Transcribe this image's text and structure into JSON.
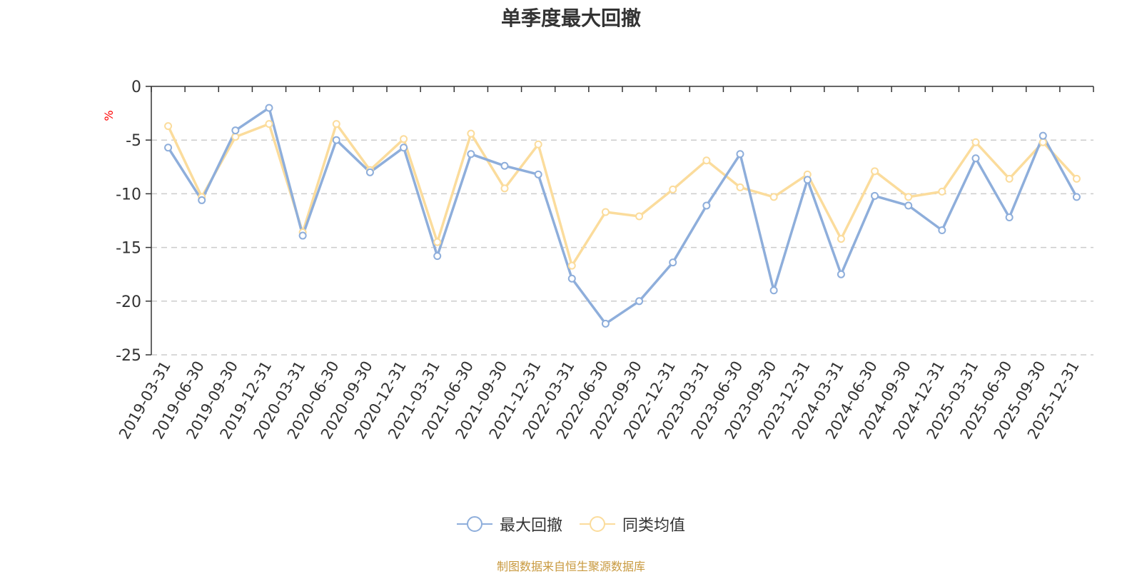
{
  "chart_data": {
    "type": "line",
    "title": "单季度最大回撤",
    "ylabel": "%",
    "xlabel": "",
    "ylim": [
      -25,
      0
    ],
    "yticks": [
      0,
      -5,
      -10,
      -15,
      -20,
      -25
    ],
    "ytick_labels": [
      "0",
      "-5",
      "-10",
      "-15",
      "-20",
      "-25"
    ],
    "grid": true,
    "legend_position": "bottom-center",
    "categories": [
      "2019-03-31",
      "2019-06-30",
      "2019-09-30",
      "2019-12-31",
      "2020-03-31",
      "2020-06-30",
      "2020-09-30",
      "2020-12-31",
      "2021-03-31",
      "2021-06-30",
      "2021-09-30",
      "2021-12-31",
      "2022-03-31",
      "2022-06-30",
      "2022-09-30",
      "2022-12-31",
      "2023-03-31",
      "2023-06-30",
      "2023-09-30",
      "2023-12-31",
      "2024-03-31",
      "2024-06-30",
      "2024-09-30",
      "2024-12-31",
      "2025-03-31",
      "2025-06-30",
      "2025-09-30",
      "2025-12-31"
    ],
    "series": [
      {
        "name": "最大回撤",
        "color": "#8eaedb",
        "values": [
          -5.7,
          -10.6,
          -4.1,
          -2.0,
          -13.9,
          -5.0,
          -8.0,
          -5.7,
          -15.8,
          -6.3,
          -7.4,
          -8.2,
          -17.9,
          -22.1,
          -20.0,
          -16.4,
          -11.1,
          -6.3,
          -19.0,
          -8.7,
          -17.5,
          -10.2,
          -11.1,
          -13.4,
          -6.7,
          -12.2,
          -4.6,
          -10.3
        ]
      },
      {
        "name": "同类均值",
        "color": "#fbdc9c",
        "values": [
          -3.7,
          -10.3,
          -4.7,
          -3.5,
          -13.6,
          -3.5,
          -7.8,
          -4.9,
          -14.5,
          -4.4,
          -9.5,
          -5.4,
          -16.7,
          -11.7,
          -12.1,
          -9.6,
          -6.9,
          -9.4,
          -10.3,
          -8.2,
          -14.2,
          -7.9,
          -10.3,
          -9.8,
          -5.2,
          -8.6,
          -5.2,
          -8.6
        ]
      }
    ]
  },
  "legend": {
    "items": [
      {
        "label": "最大回撤",
        "color": "#8eaedb"
      },
      {
        "label": "同类均值",
        "color": "#fbdc9c"
      }
    ]
  },
  "footnote": {
    "text": "制图数据来自恒生聚源数据库",
    "color": "#c8993e"
  },
  "ylabel_color": "#ff0000"
}
